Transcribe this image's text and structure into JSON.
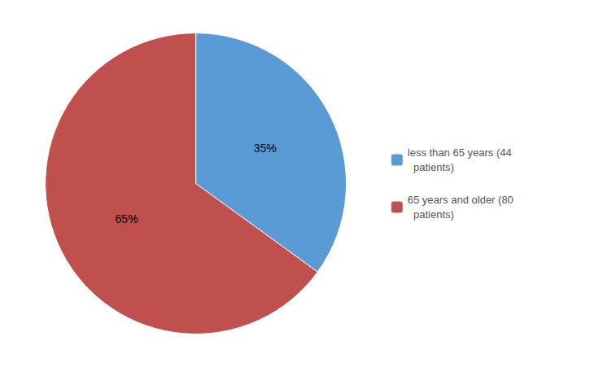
{
  "chart_data": {
    "type": "pie",
    "categories": [
      "less than 65 years (44\n  patients)",
      "65 years and older (80\n  patients)"
    ],
    "values": [
      35,
      65
    ],
    "value_labels": [
      "35%",
      "65%"
    ],
    "colors": [
      "#5B9BD5",
      "#C0504D"
    ],
    "data_labels": true,
    "legend": "right"
  }
}
